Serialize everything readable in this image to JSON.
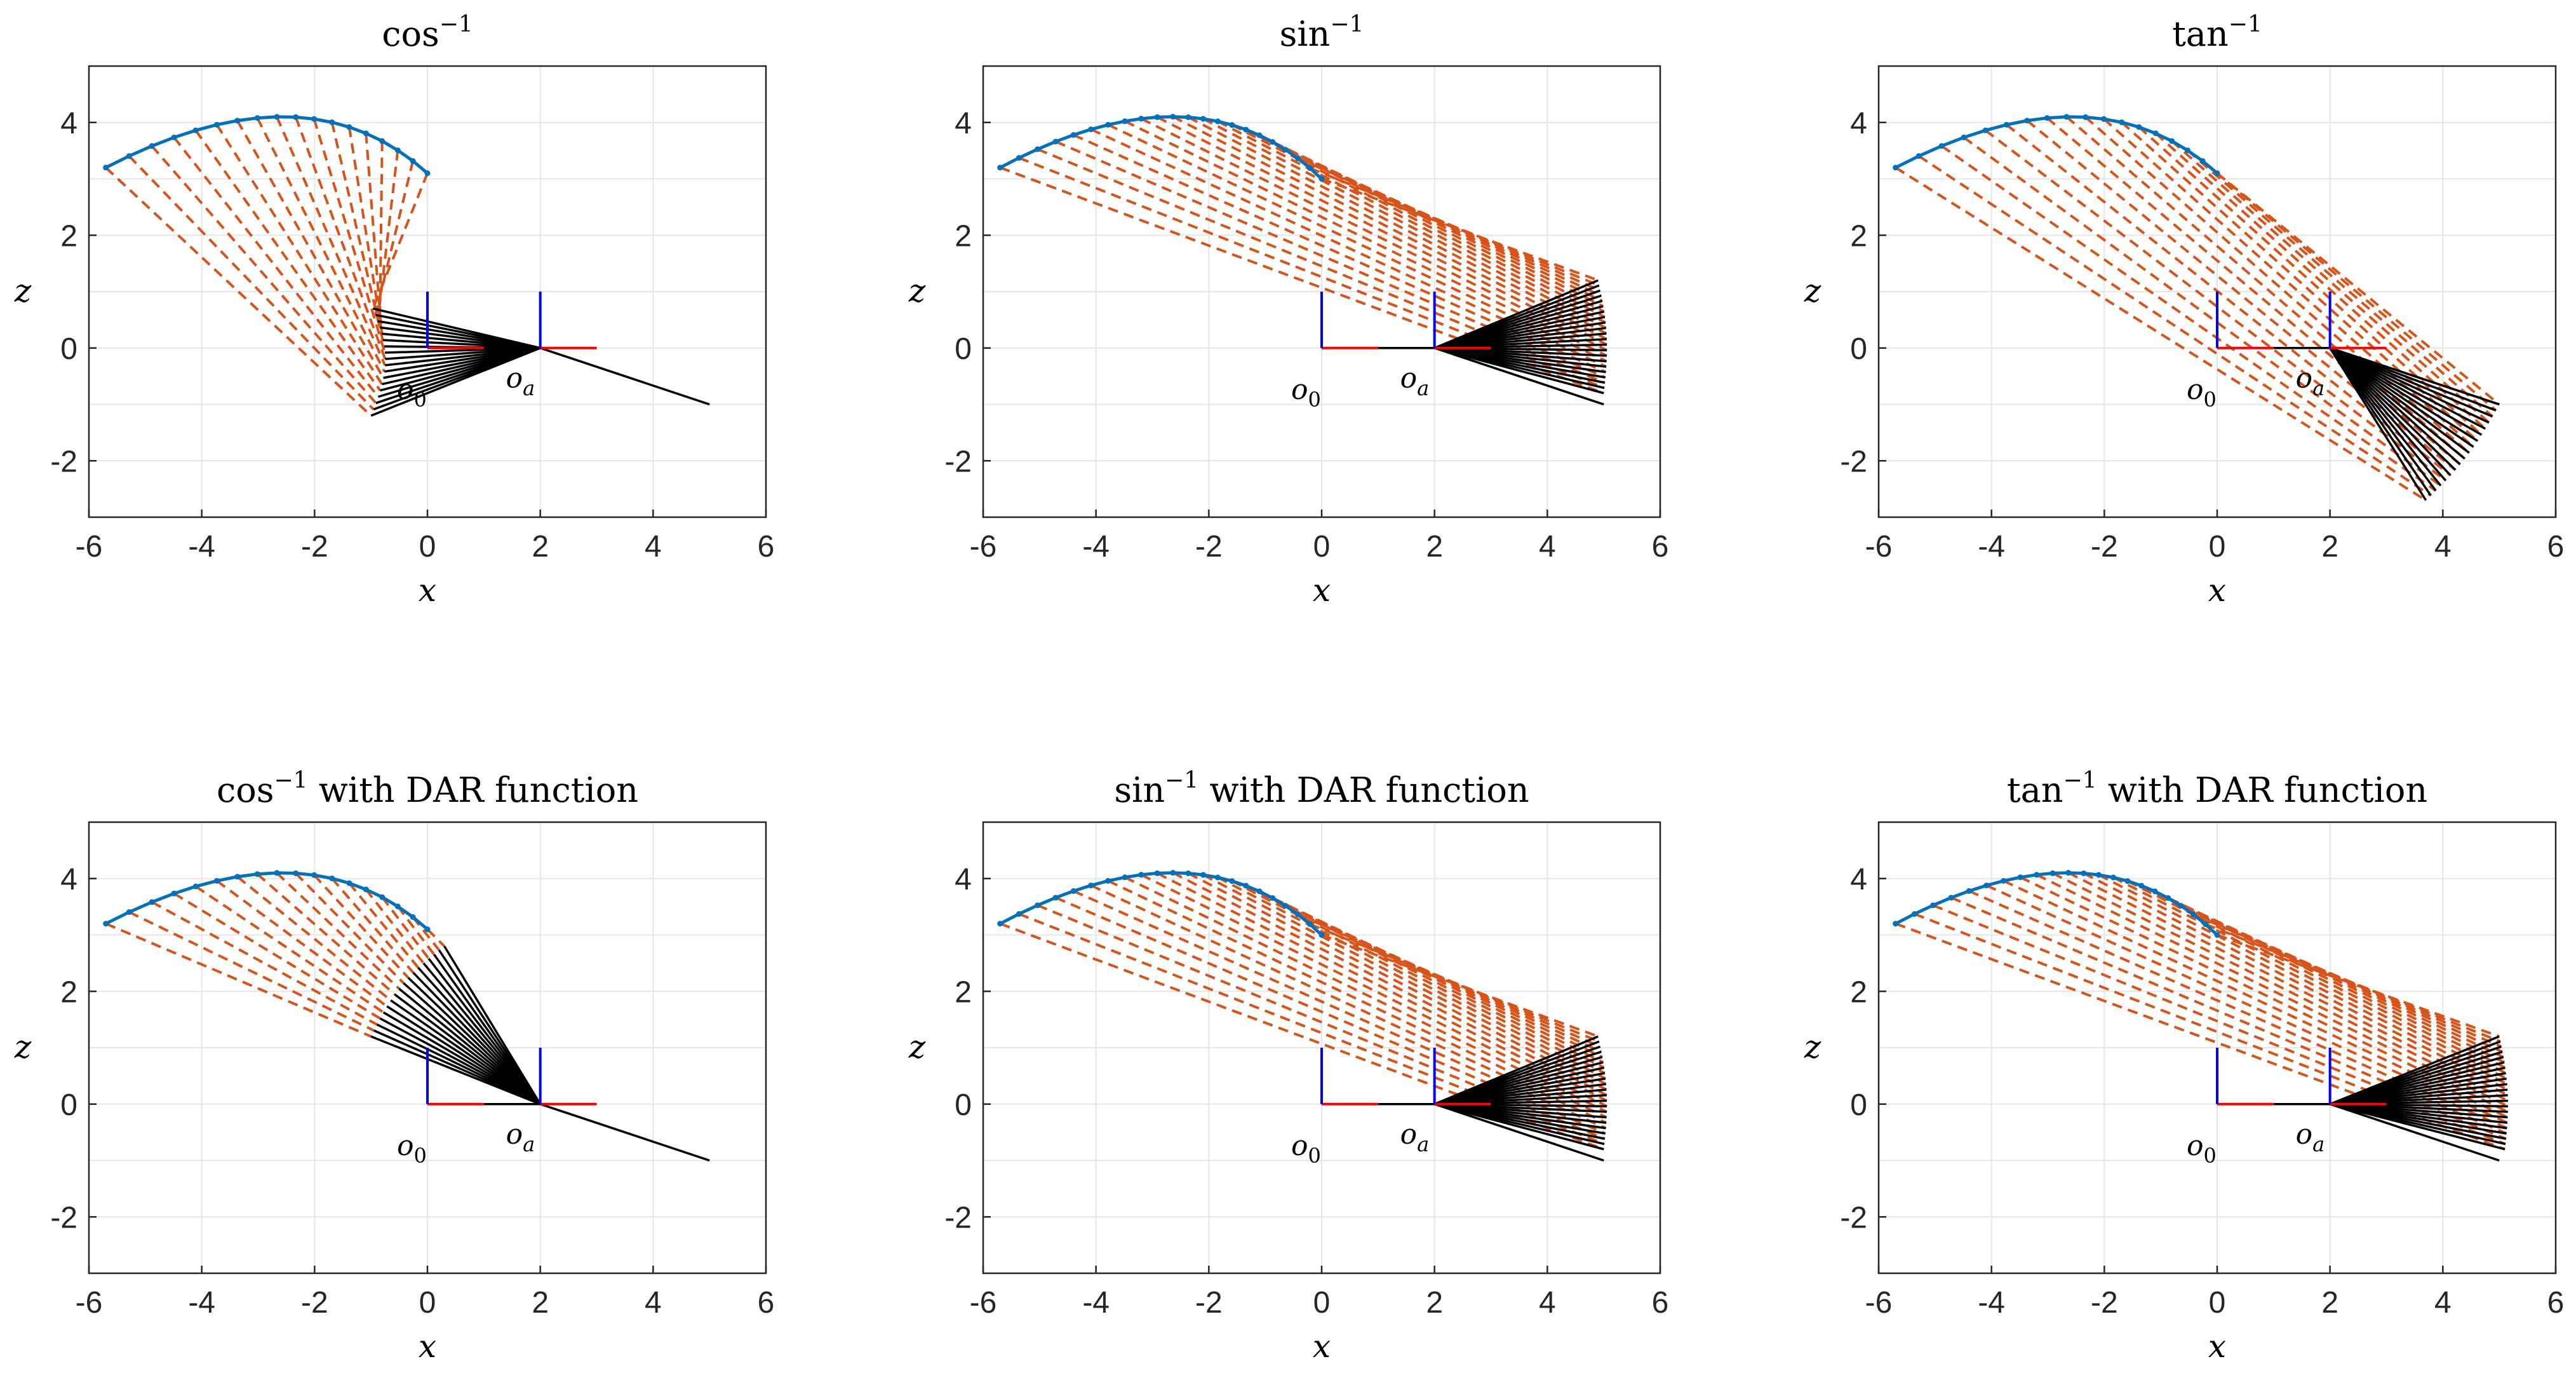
{
  "figure": {
    "rows": 2,
    "cols": 3
  },
  "chart_data": [
    {
      "type": "line",
      "title_fn": "cos",
      "title_sup": "−1",
      "title_suffix": "",
      "xlabel": "x",
      "ylabel": "z",
      "xlim": [
        -6,
        6
      ],
      "ylim": [
        -3,
        5
      ],
      "xticks": [
        "-6",
        "-4",
        "-2",
        "0",
        "2",
        "4",
        "6"
      ],
      "yticks": [
        "-2",
        "0",
        "2",
        "4"
      ],
      "origin_label": "o",
      "origin_sub": "0",
      "anchor_label": "o",
      "anchor_sub": "a",
      "spline": {
        "start": [
          -5.7,
          3.2
        ],
        "apex": [
          -2.5,
          4.1
        ],
        "end": [
          0,
          3.1
        ],
        "points": 18
      },
      "pivot": [
        -1.0,
        -1.2
      ],
      "pivot_end": [
        -1.0,
        0.7
      ],
      "anchor": [
        2,
        0
      ],
      "ray_end": [
        5,
        -1
      ]
    },
    {
      "type": "line",
      "title_fn": "sin",
      "title_sup": "−1",
      "title_suffix": "",
      "xlabel": "x",
      "ylabel": "z",
      "xlim": [
        -6,
        6
      ],
      "ylim": [
        -3,
        5
      ],
      "xticks": [
        "-6",
        "-4",
        "-2",
        "0",
        "2",
        "4",
        "6"
      ],
      "yticks": [
        "-2",
        "0",
        "2",
        "4"
      ],
      "origin_label": "o",
      "origin_sub": "0",
      "anchor_label": "o",
      "anchor_sub": "a",
      "spline": {
        "start": [
          -5.7,
          3.2
        ],
        "apex": [
          -2.5,
          4.1
        ],
        "end": [
          0,
          3.0
        ],
        "points": 22
      },
      "fan_arc": {
        "start": [
          5.0,
          -0.8
        ],
        "end": [
          4.9,
          1.2
        ]
      },
      "anchor": [
        2,
        0
      ],
      "ray_end": [
        5,
        -1
      ]
    },
    {
      "type": "line",
      "title_fn": "tan",
      "title_sup": "−1",
      "title_suffix": "",
      "xlabel": "x",
      "ylabel": "z",
      "xlim": [
        -6,
        6
      ],
      "ylim": [
        -3,
        5
      ],
      "xticks": [
        "-6",
        "-4",
        "-2",
        "0",
        "2",
        "4",
        "6"
      ],
      "yticks": [
        "-2",
        "0",
        "2",
        "4"
      ],
      "origin_label": "o",
      "origin_sub": "0",
      "anchor_label": "o",
      "anchor_sub": "a",
      "spline": {
        "start": [
          -5.7,
          3.2
        ],
        "apex": [
          -2.5,
          4.1
        ],
        "end": [
          0,
          3.1
        ],
        "points": 18
      },
      "fan_arc": {
        "start": [
          3.7,
          -2.7
        ],
        "end": [
          5.0,
          -1.0
        ]
      },
      "anchor": [
        2,
        0
      ],
      "ray_end": [
        5,
        -1
      ]
    },
    {
      "type": "line",
      "title_fn": "cos",
      "title_sup": "−1",
      "title_suffix": " with DAR function",
      "xlabel": "x",
      "ylabel": "z",
      "xlim": [
        -6,
        6
      ],
      "ylim": [
        -3,
        5
      ],
      "xticks": [
        "-6",
        "-4",
        "-2",
        "0",
        "2",
        "4",
        "6"
      ],
      "yticks": [
        "-2",
        "0",
        "2",
        "4"
      ],
      "origin_label": "o",
      "origin_sub": "0",
      "anchor_label": "o",
      "anchor_sub": "a",
      "spline": {
        "start": [
          -5.7,
          3.2
        ],
        "apex": [
          -2.5,
          4.1
        ],
        "end": [
          0,
          3.1
        ],
        "points": 18
      },
      "fan_arc": {
        "start": [
          -1.0,
          1.2
        ],
        "end": [
          0.3,
          2.8
        ]
      },
      "anchor": [
        2,
        0
      ],
      "ray_end": [
        5,
        -1
      ]
    },
    {
      "type": "line",
      "title_fn": "sin",
      "title_sup": "−1",
      "title_suffix": " with DAR function",
      "xlabel": "x",
      "ylabel": "z",
      "xlim": [
        -6,
        6
      ],
      "ylim": [
        -3,
        5
      ],
      "xticks": [
        "-6",
        "-4",
        "-2",
        "0",
        "2",
        "4",
        "6"
      ],
      "yticks": [
        "-2",
        "0",
        "2",
        "4"
      ],
      "origin_label": "o",
      "origin_sub": "0",
      "anchor_label": "o",
      "anchor_sub": "a",
      "spline": {
        "start": [
          -5.7,
          3.2
        ],
        "apex": [
          -2.5,
          4.1
        ],
        "end": [
          0,
          3.0
        ],
        "points": 22
      },
      "fan_arc": {
        "start": [
          5.0,
          -0.8
        ],
        "end": [
          4.9,
          1.2
        ]
      },
      "anchor": [
        2,
        0
      ],
      "ray_end": [
        5,
        -1
      ]
    },
    {
      "type": "line",
      "title_fn": "tan",
      "title_sup": "−1",
      "title_suffix": " with DAR function",
      "xlabel": "x",
      "ylabel": "z",
      "xlim": [
        -6,
        6
      ],
      "ylim": [
        -3,
        5
      ],
      "xticks": [
        "-6",
        "-4",
        "-2",
        "0",
        "2",
        "4",
        "6"
      ],
      "yticks": [
        "-2",
        "0",
        "2",
        "4"
      ],
      "origin_label": "o",
      "origin_sub": "0",
      "anchor_label": "o",
      "anchor_sub": "a",
      "spline": {
        "start": [
          -5.7,
          3.2
        ],
        "apex": [
          -2.5,
          4.1
        ],
        "end": [
          0,
          3.0
        ],
        "points": 22
      },
      "fan_arc": {
        "start": [
          5.1,
          -0.8
        ],
        "end": [
          5.0,
          1.2
        ]
      },
      "anchor": [
        2,
        0
      ],
      "ray_end": [
        5,
        -1
      ]
    }
  ],
  "colors": {
    "spline": "#0072BD",
    "dashed": "#D95319",
    "links": "#000000",
    "axis_x": "#FF0000",
    "axis_z": "#0000FF",
    "grid": "#E6E6E6",
    "frame": "#262626"
  }
}
